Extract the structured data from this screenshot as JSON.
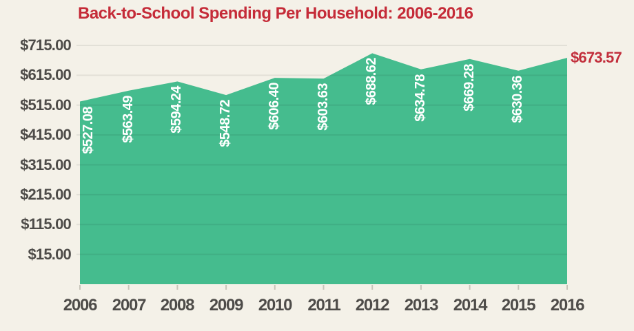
{
  "page": {
    "background_color": "#F4F1E8"
  },
  "chart_data": {
    "type": "area",
    "title": "Back-to-School Spending Per Household: 2006-2016",
    "title_color": "#C52B38",
    "categories": [
      "2006",
      "2007",
      "2008",
      "2009",
      "2010",
      "2011",
      "2012",
      "2013",
      "2014",
      "2015",
      "2016"
    ],
    "values": [
      527.08,
      563.49,
      594.24,
      548.72,
      606.4,
      603.63,
      688.62,
      634.78,
      669.28,
      630.36,
      673.57
    ],
    "point_labels": [
      "$527.08",
      "$563.49",
      "$594.24",
      "$548.72",
      "$606.40",
      "$603.63",
      "$688.62",
      "$634.78",
      "$669.28",
      "$630.36"
    ],
    "final_label": {
      "text": "$673.57",
      "color": "#C22F3C"
    },
    "y_ticks": [
      "$715.00",
      "$615.00",
      "$515.00",
      "$415.00",
      "$315.00",
      "$215.00",
      "$115.00",
      "$15.00"
    ],
    "y_tick_values": [
      715,
      615,
      515,
      415,
      315,
      215,
      115,
      15
    ],
    "ylim": [
      -85,
      715
    ],
    "xlabel": "",
    "ylabel": "",
    "area_color": "#45BC8E",
    "point_label_color": "#FFFFFF",
    "axis_text_color": "#4E4C49",
    "grid_color": "rgba(0,0,0,0.07)",
    "tick_color": "#C8C5BA",
    "grid": true,
    "legend": false
  }
}
